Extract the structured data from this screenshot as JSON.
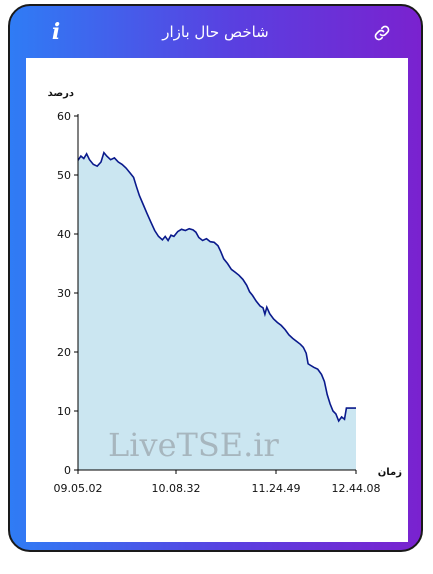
{
  "header": {
    "title": "شاخص حال بازار",
    "info_icon": "info-icon",
    "link_icon": "link-icon",
    "info_glyph": "i"
  },
  "colors": {
    "gradient_start": "#2f7cf5",
    "gradient_end": "#7a22cf",
    "line": "#0a1a8c",
    "fill": "#cbe6f1"
  },
  "watermark": "LiveTSE.ir",
  "chart_data": {
    "type": "area",
    "ylabel": "درصد",
    "xlabel": "زمان",
    "ylim": [
      0,
      60
    ],
    "yticks": [
      0,
      10,
      20,
      30,
      40,
      50,
      60
    ],
    "xtick_labels": [
      "09.05.02",
      "10.08.32",
      "11.24.49",
      "12.44.08"
    ],
    "grid": false,
    "series": [
      {
        "values": [
          [
            0,
            52.5
          ],
          [
            1.5,
            53.2
          ],
          [
            3,
            52.8
          ],
          [
            4.5,
            53.6
          ],
          [
            6,
            52.6
          ],
          [
            8,
            51.8
          ],
          [
            10,
            51.5
          ],
          [
            12,
            52.2
          ],
          [
            13.5,
            53.8
          ],
          [
            15,
            53.2
          ],
          [
            17,
            52.6
          ],
          [
            19,
            52.9
          ],
          [
            21,
            52.2
          ],
          [
            23,
            51.8
          ],
          [
            25,
            51.2
          ],
          [
            27,
            50.4
          ],
          [
            29,
            49.6
          ],
          [
            30.5,
            48.0
          ],
          [
            32,
            46.5
          ],
          [
            34,
            45.0
          ],
          [
            36,
            43.5
          ],
          [
            38,
            42.0
          ],
          [
            40,
            40.6
          ],
          [
            42,
            39.6
          ],
          [
            44,
            39.0
          ],
          [
            45.5,
            39.6
          ],
          [
            47,
            38.9
          ],
          [
            48.5,
            39.8
          ],
          [
            50,
            39.6
          ],
          [
            52,
            40.4
          ],
          [
            54,
            40.8
          ],
          [
            56,
            40.6
          ],
          [
            58,
            40.9
          ],
          [
            60,
            40.7
          ],
          [
            61.5,
            40.3
          ],
          [
            63,
            39.4
          ],
          [
            65,
            38.9
          ],
          [
            67,
            39.2
          ],
          [
            69,
            38.7
          ],
          [
            71,
            38.6
          ],
          [
            73,
            38.0
          ],
          [
            74.5,
            37.0
          ],
          [
            76,
            35.8
          ],
          [
            78,
            35.0
          ],
          [
            80,
            34.0
          ],
          [
            82,
            33.5
          ],
          [
            84,
            33.0
          ],
          [
            86,
            32.3
          ],
          [
            88,
            31.3
          ],
          [
            89.5,
            30.2
          ],
          [
            91,
            29.6
          ],
          [
            93,
            28.6
          ],
          [
            95,
            27.8
          ],
          [
            96.5,
            27.5
          ],
          [
            97.5,
            26.4
          ],
          [
            98.5,
            27.6
          ],
          [
            100,
            26.5
          ],
          [
            102,
            25.6
          ],
          [
            104,
            25.0
          ],
          [
            106,
            24.5
          ],
          [
            108,
            23.8
          ],
          [
            110,
            22.9
          ],
          [
            112,
            22.3
          ],
          [
            114,
            21.8
          ],
          [
            116,
            21.3
          ],
          [
            117.5,
            20.8
          ],
          [
            119,
            19.8
          ],
          [
            120,
            18.0
          ],
          [
            121,
            17.8
          ],
          [
            123,
            17.4
          ],
          [
            125,
            17.1
          ],
          [
            127,
            16.2
          ],
          [
            128.5,
            15.0
          ],
          [
            130,
            12.8
          ],
          [
            131.5,
            11.2
          ],
          [
            133,
            10.0
          ],
          [
            134.5,
            9.5
          ],
          [
            136,
            8.3
          ],
          [
            137.5,
            9.0
          ],
          [
            139,
            8.6
          ],
          [
            140,
            10.5
          ],
          [
            145,
            10.5
          ]
        ]
      }
    ]
  }
}
